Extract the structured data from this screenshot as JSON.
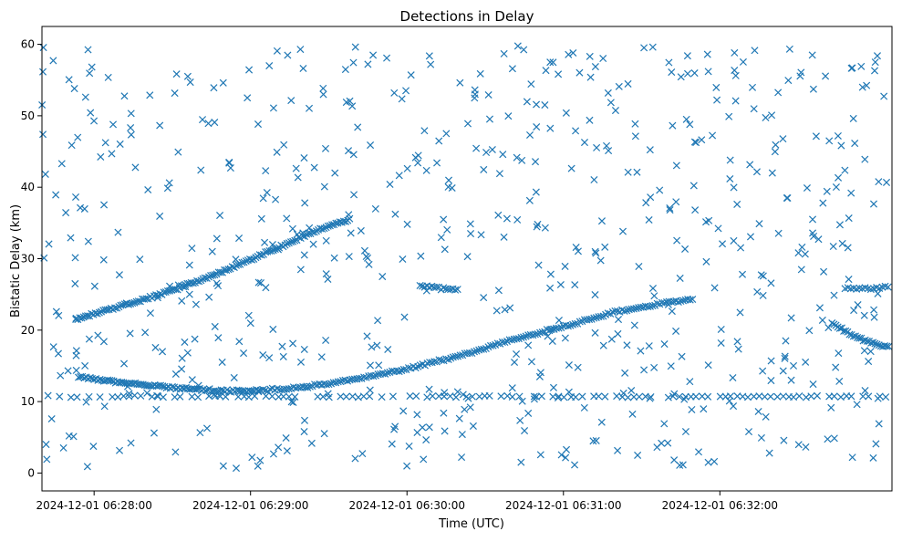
{
  "chart_data": {
    "type": "scatter",
    "title": "Detections in Delay",
    "xlabel": "Time (UTC)",
    "ylabel": "Bistatic Delay (km)",
    "marker": "x",
    "color": "#1f77b4",
    "x_unit": "seconds since 2024-12-01 06:27:40 UTC",
    "xlim": [
      0,
      326
    ],
    "ylim": [
      -2.5,
      62.5
    ],
    "x_ticks": [
      {
        "value": 20,
        "label": "2024-12-01 06:28:00"
      },
      {
        "value": 80,
        "label": "2024-12-01 06:29:00"
      },
      {
        "value": 140,
        "label": "2024-12-01 06:30:00"
      },
      {
        "value": 200,
        "label": "2024-12-01 06:31:00"
      },
      {
        "value": 260,
        "label": "2024-12-01 06:32:00"
      }
    ],
    "y_ticks": [
      {
        "value": 0,
        "label": "0"
      },
      {
        "value": 10,
        "label": "10"
      },
      {
        "value": 20,
        "label": "20"
      },
      {
        "value": 30,
        "label": "30"
      },
      {
        "value": 40,
        "label": "40"
      },
      {
        "value": 50,
        "label": "50"
      },
      {
        "value": 60,
        "label": "60"
      }
    ],
    "series": [
      {
        "name": "track-upper-rising",
        "description": "dense track rising from ~21.5 km to ~35.5 km",
        "x_range": [
          13,
          118
        ],
        "y_range": [
          21.5,
          35.5
        ],
        "points": [
          [
            13,
            21.5
          ],
          [
            20,
            22.3
          ],
          [
            30,
            23.3
          ],
          [
            40,
            24.4
          ],
          [
            50,
            25.6
          ],
          [
            60,
            26.9
          ],
          [
            70,
            28.3
          ],
          [
            80,
            29.9
          ],
          [
            90,
            31.4
          ],
          [
            100,
            33.1
          ],
          [
            110,
            34.6
          ],
          [
            118,
            35.5
          ]
        ]
      },
      {
        "name": "track-lower-falling",
        "description": "track falling from ~13.5 km to ~11.5 km",
        "x_range": [
          14,
          83
        ],
        "y_range": [
          13.5,
          11.5
        ],
        "points": [
          [
            14,
            13.5
          ],
          [
            25,
            12.9
          ],
          [
            40,
            12.3
          ],
          [
            55,
            11.8
          ],
          [
            70,
            11.5
          ],
          [
            83,
            11.5
          ]
        ]
      },
      {
        "name": "track-lower-rising",
        "description": "long track rising from ~11.5 km to ~24.3 km",
        "x_range": [
          83,
          250
        ],
        "y_range": [
          11.5,
          24.3
        ],
        "points": [
          [
            83,
            11.5
          ],
          [
            100,
            12.0
          ],
          [
            120,
            13.1
          ],
          [
            140,
            14.6
          ],
          [
            160,
            16.4
          ],
          [
            180,
            18.6
          ],
          [
            200,
            20.5
          ],
          [
            220,
            22.5
          ],
          [
            240,
            23.9
          ],
          [
            250,
            24.3
          ]
        ]
      },
      {
        "name": "track-right-falling",
        "description": "short track falling from ~21 km to ~17.5 km near the end",
        "x_range": [
          303,
          325
        ],
        "y_range": [
          21,
          17.5
        ],
        "points": [
          [
            303,
            21.0
          ],
          [
            310,
            19.4
          ],
          [
            318,
            18.2
          ],
          [
            325,
            17.6
          ]
        ]
      },
      {
        "name": "short-segment-26km",
        "description": "short segments near 26 km",
        "points": [
          [
            145,
            26.3
          ],
          [
            150,
            26.0
          ],
          [
            155,
            25.8
          ],
          [
            160,
            25.8
          ],
          [
            310,
            25.8
          ],
          [
            318,
            25.9
          ],
          [
            325,
            26.0
          ]
        ]
      },
      {
        "name": "constant-line-10.7km",
        "description": "near-constant detections along ~10.7 km across the whole span",
        "x_range": [
          0,
          325
        ],
        "y_value": 10.7
      },
      {
        "name": "clutter",
        "description": "uniformly scattered noise detections between 0 and 60 km",
        "x_range": [
          0,
          325
        ],
        "y_range": [
          0.5,
          59.8
        ],
        "count": 650
      }
    ]
  }
}
